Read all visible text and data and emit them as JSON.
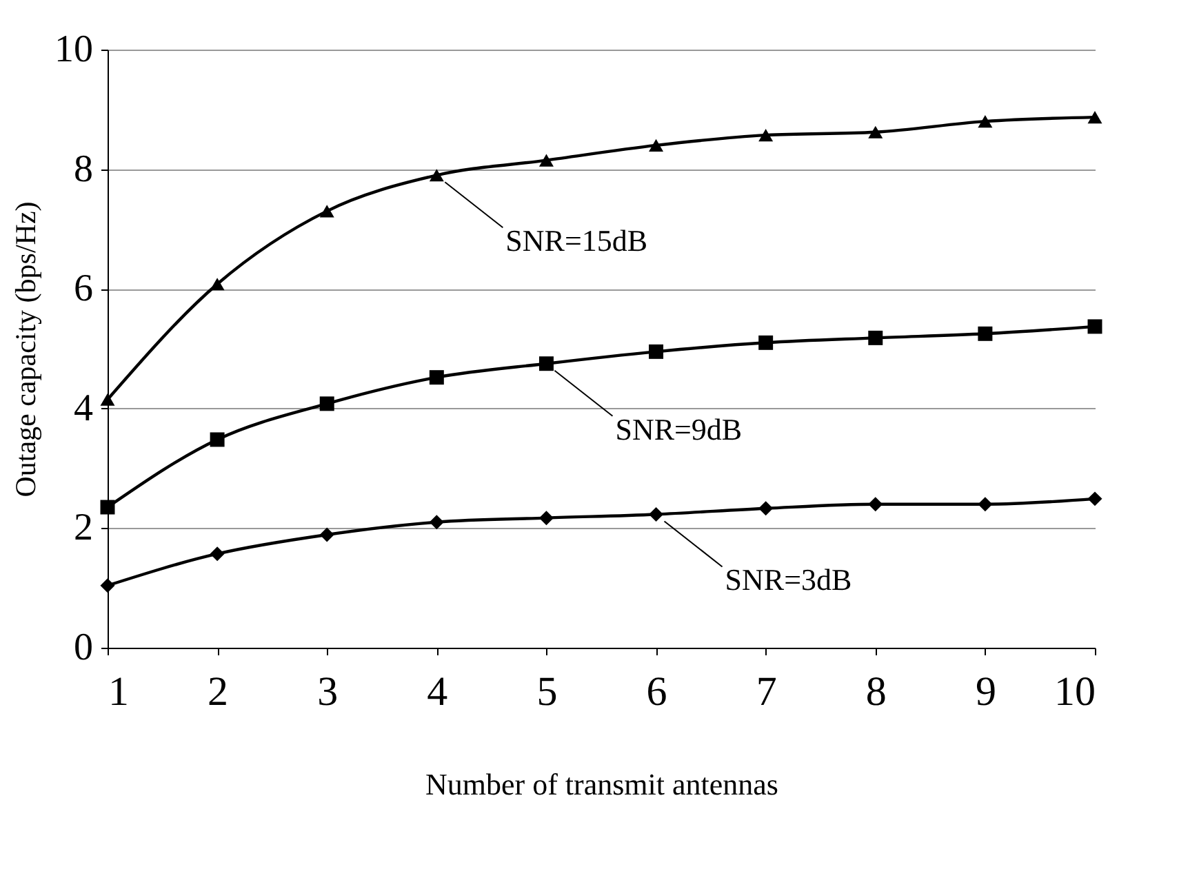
{
  "chart_data": {
    "type": "line",
    "xlabel": "Number of transmit antennas",
    "ylabel": "Outage capacity (bps/Hz)",
    "x": [
      1,
      2,
      3,
      4,
      5,
      6,
      7,
      8,
      9,
      10
    ],
    "series": [
      {
        "color": "#000000",
        "marker": "triangle",
        "values": [
          4.15,
          6.08,
          7.3,
          7.9,
          8.15,
          8.4,
          8.57,
          8.62,
          8.8,
          8.87
        ]
      },
      {
        "color": "#000000",
        "marker": "square",
        "values": [
          2.35,
          3.48,
          4.08,
          4.52,
          4.75,
          4.95,
          5.1,
          5.18,
          5.25,
          5.37
        ]
      },
      {
        "color": "#000000",
        "marker": "diamond",
        "values": [
          1.04,
          1.57,
          1.89,
          2.1,
          2.17,
          2.23,
          2.33,
          2.4,
          2.4,
          2.49
        ]
      }
    ],
    "xlim": [
      1,
      10
    ],
    "xticks": [
      1,
      2,
      3,
      4,
      5,
      6,
      7,
      8,
      9,
      10
    ],
    "ylim": [
      0,
      10
    ],
    "yticks": [
      0,
      2,
      4,
      6,
      8,
      10
    ],
    "grid": "y",
    "annotations": [
      {
        "text": "SNR=15dB",
        "x": 4,
        "y": 7.9
      },
      {
        "text": "SNR=9dB",
        "x": 5,
        "y": 4.75
      },
      {
        "text": "SNR=3dB",
        "x": 6,
        "y": 2.23
      }
    ]
  }
}
